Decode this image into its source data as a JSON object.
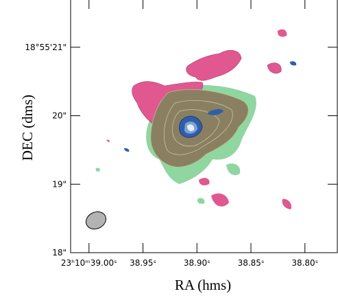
{
  "chart_data": {
    "type": "contour",
    "x_label": "RA (hms)",
    "y_label": "DEC (dms)",
    "xlim": [
      39.017,
      38.77
    ],
    "ylim": [
      18,
      21.7
    ],
    "xticks": [
      {
        "value": 39.0,
        "label": "23ʰ10ᵐ39.00ˢ"
      },
      {
        "value": 38.95,
        "label": "38.95ˢ"
      },
      {
        "value": 38.9,
        "label": "38.90ˢ"
      },
      {
        "value": 38.85,
        "label": "38.85ˢ"
      },
      {
        "value": 38.8,
        "label": "38.80ˢ"
      }
    ],
    "yticks": [
      {
        "value": 18,
        "label": "18\""
      },
      {
        "value": 19,
        "label": "19\""
      },
      {
        "value": 20,
        "label": "20\""
      },
      {
        "value": 21,
        "label": "18°55'21\""
      }
    ]
  }
}
